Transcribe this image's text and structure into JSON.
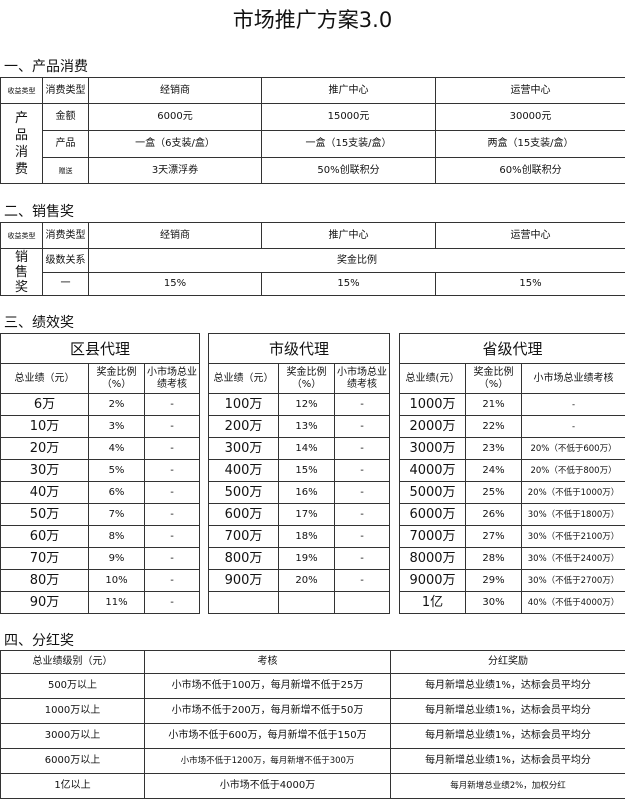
{
  "title": "市场推广方案3.0",
  "section1": {
    "heading": "一、产品消费",
    "corner_label": "收益类型",
    "type_label": "消费类型",
    "columns": [
      "经销商",
      "推广中心",
      "运营中心"
    ],
    "group_label": "产品消费",
    "rows": [
      {
        "label": "金额",
        "values": [
          "6000元",
          "15000元",
          "30000元"
        ]
      },
      {
        "label": "产品",
        "values": [
          "一盒（6支装/盒）",
          "一盒（15支装/盒）",
          "两盒（15支装/盒）"
        ]
      },
      {
        "label": "赠送",
        "values": [
          "3天漂浮券",
          "50%创联积分",
          "60%创联积分"
        ]
      }
    ]
  },
  "section2": {
    "heading": "二、销售奖",
    "corner_label": "收益类型",
    "type_label": "消费类型",
    "columns": [
      "经销商",
      "推广中心",
      "运营中心"
    ],
    "group_label": "销售奖",
    "level_label": "级数关系",
    "ratio_label": "奖金比例",
    "level": "一",
    "values": [
      "15%",
      "15%",
      "15%"
    ]
  },
  "section3": {
    "heading": "三、绩效奖",
    "tables": [
      {
        "title": "区县代理",
        "headers": [
          "总业绩（元）",
          "奖金比例（%）",
          "小市场总业绩考核"
        ],
        "rows": [
          [
            "6万",
            "2%",
            "-"
          ],
          [
            "10万",
            "3%",
            "-"
          ],
          [
            "20万",
            "4%",
            "-"
          ],
          [
            "30万",
            "5%",
            "-"
          ],
          [
            "40万",
            "6%",
            "-"
          ],
          [
            "50万",
            "7%",
            "-"
          ],
          [
            "60万",
            "8%",
            "-"
          ],
          [
            "70万",
            "9%",
            "-"
          ],
          [
            "80万",
            "10%",
            "-"
          ],
          [
            "90万",
            "11%",
            "-"
          ]
        ]
      },
      {
        "title": "市级代理",
        "headers": [
          "总业绩（元）",
          "奖金比例（%）",
          "小市场总业绩考核"
        ],
        "rows": [
          [
            "100万",
            "12%",
            "-"
          ],
          [
            "200万",
            "13%",
            "-"
          ],
          [
            "300万",
            "14%",
            "-"
          ],
          [
            "400万",
            "15%",
            "-"
          ],
          [
            "500万",
            "16%",
            "-"
          ],
          [
            "600万",
            "17%",
            "-"
          ],
          [
            "700万",
            "18%",
            "-"
          ],
          [
            "800万",
            "19%",
            "-"
          ],
          [
            "900万",
            "20%",
            "-"
          ],
          [
            "",
            "",
            ""
          ]
        ]
      },
      {
        "title": "省级代理",
        "headers": [
          "总业绩(元）",
          "奖金比例（%）",
          "小市场总业绩考核"
        ],
        "rows": [
          [
            "1000万",
            "21%",
            "-"
          ],
          [
            "2000万",
            "22%",
            "-"
          ],
          [
            "3000万",
            "23%",
            "20%（不低于600万）"
          ],
          [
            "4000万",
            "24%",
            "20%（不低于800万）"
          ],
          [
            "5000万",
            "25%",
            "20%（不低于1000万）"
          ],
          [
            "6000万",
            "26%",
            "30%（不低于1800万）"
          ],
          [
            "7000万",
            "27%",
            "30%（不低于2100万）"
          ],
          [
            "8000万",
            "28%",
            "30%（不低于2400万）"
          ],
          [
            "9000万",
            "29%",
            "30%（不低于2700万）"
          ],
          [
            "1亿",
            "30%",
            "40%（不低于4000万）"
          ]
        ]
      }
    ]
  },
  "section4": {
    "heading": "四、分红奖",
    "headers": [
      "总业绩级别（元）",
      "考核",
      "分红奖励"
    ],
    "rows": [
      [
        "500万以上",
        "小市场不低于100万，每月新增不低于25万",
        "每月新增总业绩1%，达标会员平均分"
      ],
      [
        "1000万以上",
        "小市场不低于200万，每月新增不低于50万",
        "每月新增总业绩1%，达标会员平均分"
      ],
      [
        "3000万以上",
        "小市场不低于600万，每月新增不低于150万",
        "每月新增总业绩1%，达标会员平均分"
      ],
      [
        "6000万以上",
        "小市场不低于1200万，每月新增不低于300万",
        "每月新增总业绩1%，达标会员平均分"
      ],
      [
        "1亿以上",
        "小市场不低于4000万",
        "每月新增总业绩2%，加权分红"
      ]
    ]
  }
}
